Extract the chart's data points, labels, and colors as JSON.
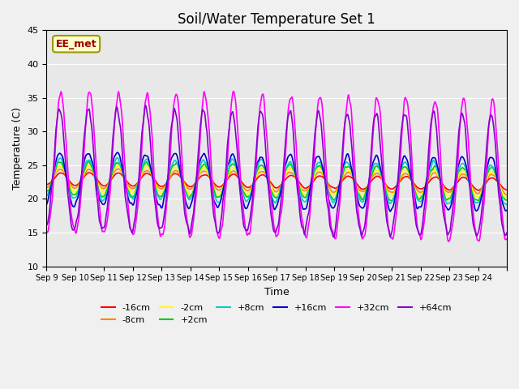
{
  "title": "Soil/Water Temperature Set 1",
  "xlabel": "Time",
  "ylabel": "Temperature (C)",
  "ylim": [
    10,
    45
  ],
  "yticks": [
    10,
    15,
    20,
    25,
    30,
    35,
    40,
    45
  ],
  "annotation": "EE_met",
  "background_color": "#e8e8e8",
  "plot_bg_color": "#e8e8e8",
  "series": [
    {
      "label": "-16cm",
      "color": "#ff0000"
    },
    {
      "label": "-8cm",
      "color": "#ff8800"
    },
    {
      "label": "-2cm",
      "color": "#ffff00"
    },
    {
      "label": "+2cm",
      "color": "#00cc00"
    },
    {
      "label": "+8cm",
      "color": "#00cccc"
    },
    {
      "label": "+16cm",
      "color": "#0000cc"
    },
    {
      "label": "+32cm",
      "color": "#ff00ff"
    },
    {
      "label": "+64cm",
      "color": "#8800cc"
    }
  ],
  "xticklabels": [
    "Sep 9",
    "Sep 10",
    "Sep 11",
    "Sep 12",
    "Sep 13",
    "Sep 14",
    "Sep 15",
    "Sep 16",
    "Sep 17",
    "Sep 18",
    "Sep 19",
    "Sep 20",
    "Sep 21",
    "Sep 22",
    "Sep 23",
    "Sep 24"
  ],
  "num_days": 16,
  "start_day": 9
}
